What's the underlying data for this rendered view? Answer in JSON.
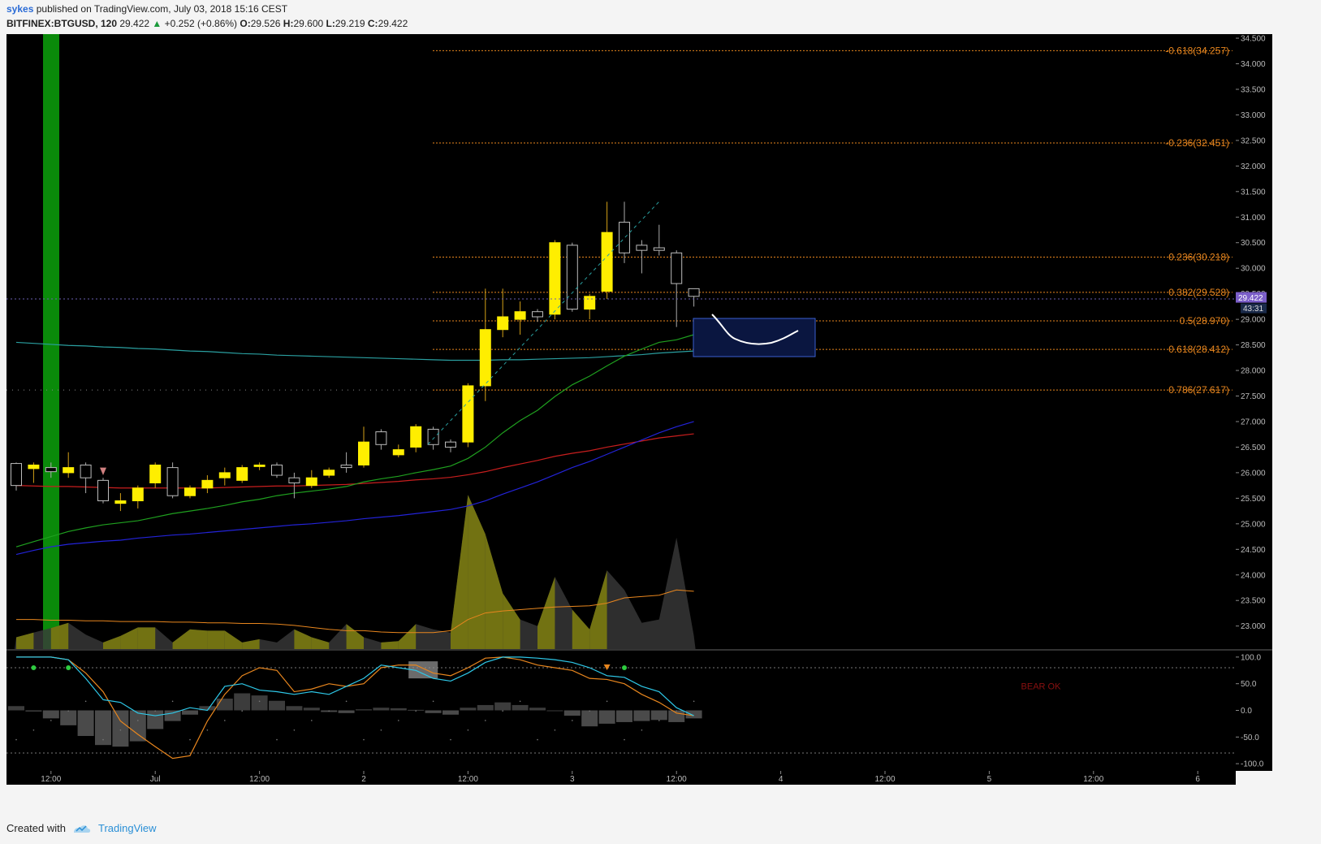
{
  "header": {
    "author": "sykes",
    "published_text": "published on TradingView.com, July 03, 2018 15:16 CEST",
    "symbol": "BITFINEX:BTGUSD, 120",
    "last": "29.422",
    "change": "+0.252 (+0.86%)",
    "o_label": "O:",
    "o": "29.526",
    "h_label": "H:",
    "h": "29.600",
    "l_label": "L:",
    "l": "29.219",
    "c_label": "C:",
    "c": "29.422"
  },
  "footer": {
    "created_with": "Created with",
    "brand": "TradingView"
  },
  "colors": {
    "background": "#000000",
    "up": "#ffee00",
    "down": "#000000",
    "fib": "#e8861e",
    "ema_green": "#1fa01f",
    "ema_blue": "#2323d8",
    "ema_red": "#c81e1e",
    "ema_teal": "#2a9fa0",
    "price_badge": "#7b5ec8"
  },
  "chart_data": {
    "type": "candlestick",
    "symbol": "BITFINEX:BTGUSD",
    "interval": "120",
    "yticks": [
      "23.000",
      "23.500",
      "24.000",
      "24.500",
      "25.000",
      "25.500",
      "26.000",
      "26.500",
      "27.000",
      "27.500",
      "28.000",
      "28.500",
      "29.000",
      "29.500",
      "30.000",
      "30.500",
      "31.000",
      "31.500",
      "32.000",
      "32.500",
      "33.000",
      "33.500",
      "34.000",
      "34.500"
    ],
    "ylim": [
      22.55,
      34.58
    ],
    "xticks": [
      {
        "label": "12:00",
        "bar": 2
      },
      {
        "label": "Jul",
        "bar": 8
      },
      {
        "label": "12:00",
        "bar": 14
      },
      {
        "label": "2",
        "bar": 20
      },
      {
        "label": "12:00",
        "bar": 26
      },
      {
        "label": "3",
        "bar": 32
      },
      {
        "label": "12:00",
        "bar": 38
      },
      {
        "label": "4",
        "bar": 44
      },
      {
        "label": "12:00",
        "bar": 50
      },
      {
        "label": "5",
        "bar": 56
      },
      {
        "label": "12:00",
        "bar": 62
      },
      {
        "label": "6",
        "bar": 68
      }
    ],
    "candles": [
      [
        26.18,
        25.75,
        26.2,
        25.65
      ],
      [
        26.08,
        26.15,
        26.2,
        25.8
      ],
      [
        26.1,
        26.02,
        26.2,
        25.9
      ],
      [
        26.0,
        26.1,
        26.4,
        25.9
      ],
      [
        26.15,
        25.9,
        26.2,
        25.6
      ],
      [
        25.85,
        25.45,
        25.9,
        25.4
      ],
      [
        25.4,
        25.45,
        25.6,
        25.25
      ],
      [
        25.45,
        25.7,
        25.75,
        25.3
      ],
      [
        25.8,
        26.15,
        26.2,
        25.7
      ],
      [
        26.1,
        25.55,
        26.2,
        25.5
      ],
      [
        25.55,
        25.7,
        25.75,
        25.5
      ],
      [
        25.7,
        25.85,
        25.95,
        25.6
      ],
      [
        25.9,
        26.0,
        26.1,
        25.75
      ],
      [
        25.85,
        26.1,
        26.15,
        25.8
      ],
      [
        26.12,
        26.15,
        26.2,
        26.05
      ],
      [
        26.15,
        25.95,
        26.2,
        25.9
      ],
      [
        25.9,
        25.8,
        26.0,
        25.5
      ],
      [
        25.75,
        25.9,
        26.05,
        25.7
      ],
      [
        25.95,
        26.05,
        26.1,
        25.9
      ],
      [
        26.15,
        26.1,
        26.4,
        26.0
      ],
      [
        26.15,
        26.6,
        26.9,
        26.1
      ],
      [
        26.8,
        26.55,
        26.85,
        26.45
      ],
      [
        26.35,
        26.45,
        26.55,
        26.3
      ],
      [
        26.5,
        26.9,
        26.95,
        26.4
      ],
      [
        26.85,
        26.55,
        26.9,
        26.45
      ],
      [
        26.6,
        26.5,
        26.65,
        26.4
      ],
      [
        26.6,
        27.7,
        27.75,
        26.5
      ],
      [
        27.7,
        28.8,
        29.6,
        27.4
      ],
      [
        28.8,
        29.05,
        29.6,
        28.65
      ],
      [
        29.0,
        29.15,
        29.35,
        28.7
      ],
      [
        29.15,
        29.05,
        29.2,
        28.95
      ],
      [
        29.1,
        30.5,
        30.55,
        29.0
      ],
      [
        30.45,
        29.2,
        30.5,
        29.15
      ],
      [
        29.2,
        29.45,
        29.5,
        29.0
      ],
      [
        29.55,
        30.7,
        31.3,
        29.4
      ],
      [
        30.9,
        30.3,
        31.3,
        30.1
      ],
      [
        30.45,
        30.35,
        30.55,
        29.9
      ],
      [
        30.4,
        30.35,
        30.85,
        30.25
      ],
      [
        30.3,
        29.7,
        30.35,
        28.85
      ],
      [
        29.6,
        29.45,
        29.6,
        29.25
      ]
    ],
    "ema_green": [
      24.55,
      24.65,
      24.75,
      24.85,
      24.92,
      24.98,
      25.02,
      25.06,
      25.13,
      25.2,
      25.25,
      25.3,
      25.36,
      25.43,
      25.48,
      25.55,
      25.6,
      25.64,
      25.68,
      25.73,
      25.82,
      25.88,
      25.93,
      26.0,
      26.06,
      26.13,
      26.28,
      26.5,
      26.78,
      27.02,
      27.22,
      27.49,
      27.72,
      27.89,
      28.09,
      28.28,
      28.42,
      28.55,
      28.6,
      28.7
    ],
    "ema_blue": [
      24.4,
      24.48,
      24.55,
      24.6,
      24.63,
      24.66,
      24.68,
      24.72,
      24.75,
      24.78,
      24.8,
      24.83,
      24.86,
      24.89,
      24.92,
      24.95,
      24.98,
      25.0,
      25.03,
      25.06,
      25.1,
      25.13,
      25.16,
      25.2,
      25.24,
      25.28,
      25.35,
      25.45,
      25.58,
      25.7,
      25.82,
      25.96,
      26.1,
      26.22,
      26.36,
      26.5,
      26.64,
      26.78,
      26.9,
      27.0
    ],
    "ema_red": [
      25.75,
      25.74,
      25.73,
      25.73,
      25.72,
      25.71,
      25.7,
      25.7,
      25.7,
      25.7,
      25.7,
      25.7,
      25.71,
      25.72,
      25.73,
      25.74,
      25.74,
      25.75,
      25.76,
      25.77,
      25.79,
      25.81,
      25.83,
      25.86,
      25.88,
      25.91,
      25.96,
      26.02,
      26.1,
      26.17,
      26.24,
      26.32,
      26.38,
      26.43,
      26.5,
      26.56,
      26.62,
      26.68,
      26.72,
      26.76
    ],
    "ema_teal": [
      28.55,
      28.53,
      28.51,
      28.49,
      28.48,
      28.46,
      28.45,
      28.43,
      28.42,
      28.4,
      28.38,
      28.37,
      28.35,
      28.33,
      28.32,
      28.3,
      28.29,
      28.28,
      28.27,
      28.26,
      28.25,
      28.24,
      28.23,
      28.22,
      28.21,
      28.2,
      28.2,
      28.2,
      28.21,
      28.21,
      28.22,
      28.23,
      28.24,
      28.25,
      28.27,
      28.29,
      28.31,
      28.34,
      28.36,
      28.38
    ],
    "volume": [
      0.18,
      0.25,
      0.32,
      0.4,
      0.22,
      0.1,
      0.2,
      0.33,
      0.33,
      0.1,
      0.3,
      0.28,
      0.28,
      0.1,
      0.15,
      0.1,
      0.3,
      0.18,
      0.1,
      0.38,
      0.18,
      0.1,
      0.12,
      0.38,
      0.3,
      0.25,
      2.35,
      1.75,
      0.85,
      0.45,
      0.35,
      1.1,
      0.6,
      0.3,
      1.2,
      0.9,
      0.4,
      0.45,
      1.7,
      0.2
    ],
    "volume_ma": [
      0.45,
      0.45,
      0.44,
      0.44,
      0.43,
      0.43,
      0.42,
      0.42,
      0.42,
      0.41,
      0.41,
      0.4,
      0.4,
      0.39,
      0.39,
      0.38,
      0.36,
      0.33,
      0.3,
      0.28,
      0.28,
      0.26,
      0.25,
      0.25,
      0.25,
      0.28,
      0.45,
      0.55,
      0.58,
      0.6,
      0.62,
      0.64,
      0.65,
      0.66,
      0.7,
      0.78,
      0.8,
      0.82,
      0.9,
      0.88
    ],
    "fibonacci": [
      {
        "label": "-0.618(34.257)",
        "level": 34.257
      },
      {
        "label": "-0.236(32.451)",
        "level": 32.451
      },
      {
        "label": "0.236(30.218)",
        "level": 30.218
      },
      {
        "label": "0.382(29.528)",
        "level": 29.528
      },
      {
        "label": "0.5(28.970)",
        "level": 28.97
      },
      {
        "label": "0.618(28.412)",
        "level": 28.412
      },
      {
        "label": "0.786(27.617)",
        "level": 27.617
      }
    ],
    "price_badge": {
      "price": "29.422",
      "countdown": "43:31"
    },
    "oscillator": {
      "yticks": [
        "100.0",
        "50.0",
        "0.0",
        "-50.0",
        "-100.0"
      ],
      "ylim": [
        -112,
        112
      ],
      "overbought": 80,
      "oversold": -80,
      "fast": [
        100,
        100,
        100,
        95,
        60,
        20,
        15,
        -5,
        -10,
        -5,
        5,
        0,
        45,
        50,
        38,
        35,
        30,
        35,
        30,
        45,
        60,
        85,
        80,
        75,
        60,
        55,
        70,
        90,
        100,
        100,
        98,
        95,
        90,
        80,
        65,
        62,
        45,
        35,
        5,
        -10
      ],
      "slow": [
        100,
        100,
        100,
        95,
        70,
        35,
        -20,
        -45,
        -68,
        -90,
        -85,
        -20,
        30,
        65,
        80,
        75,
        35,
        40,
        50,
        45,
        50,
        80,
        85,
        85,
        70,
        65,
        80,
        98,
        100,
        95,
        85,
        80,
        75,
        60,
        58,
        50,
        30,
        15,
        -5,
        -10
      ],
      "histogram": [
        8,
        -2,
        -15,
        -28,
        -48,
        -65,
        -68,
        -58,
        -35,
        -20,
        -8,
        8,
        22,
        32,
        28,
        18,
        8,
        5,
        -3,
        -5,
        2,
        5,
        4,
        1,
        -5,
        -8,
        5,
        10,
        15,
        10,
        5,
        0,
        -10,
        -30,
        -25,
        -22,
        -20,
        -18,
        -22,
        -15
      ],
      "signals": [
        {
          "type": "dot",
          "bar": 1,
          "value": 80,
          "color": "#2ecc40"
        },
        {
          "type": "dot",
          "bar": 3,
          "value": 80,
          "color": "#2ecc40"
        },
        {
          "type": "marker",
          "bar": 34,
          "value": 80,
          "color": "#e8861e"
        },
        {
          "type": "dot",
          "bar": 35,
          "value": 80,
          "color": "#2ecc40"
        }
      ],
      "label": "BEAR OK"
    }
  }
}
